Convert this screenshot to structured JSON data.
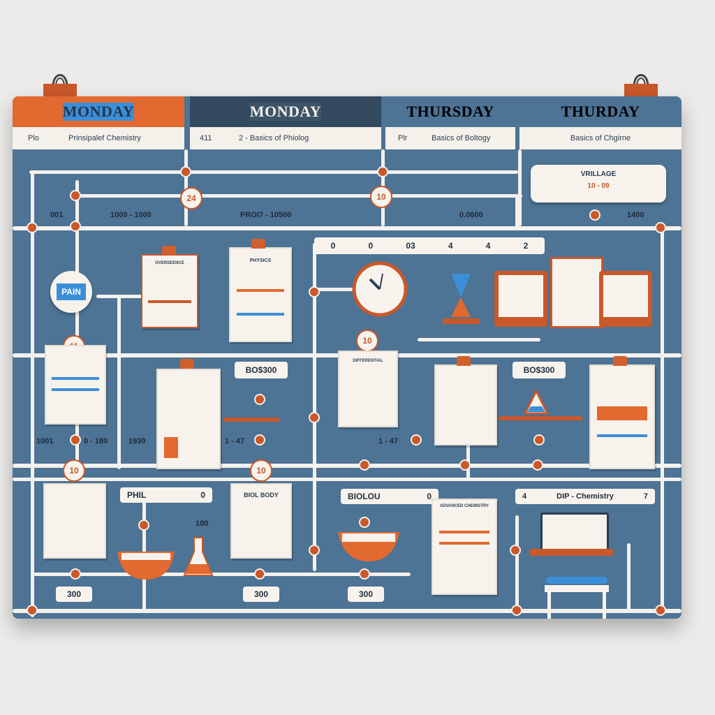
{
  "header": {
    "days": [
      {
        "label": "MONDAY",
        "bg": "#e2692f",
        "fg": "#25364a"
      },
      {
        "label": "MONDAY",
        "bg": "#3b8fd8",
        "fg": "#25364a"
      },
      {
        "label": "THURSDAY",
        "bg": "#32495f",
        "fg": "#f2ede6"
      },
      {
        "label": "THURDAY",
        "bg": "#3c5368",
        "fg": "#f2ede6"
      }
    ],
    "subtitles": [
      {
        "code": "Plo",
        "text": "Prinsipalef Chemistry"
      },
      {
        "code": "411",
        "text": "2 - Basics of Phiolog"
      },
      {
        "code": "Plr",
        "text": "Basics of Boltogy"
      },
      {
        "code": "",
        "text": "Basics of Chgirne"
      }
    ]
  },
  "notice": {
    "title": "VRILLAGE",
    "text": "10 - 09"
  },
  "times_row1": [
    "001",
    "1000 - 1000",
    "PROI7 - 10500",
    "0.0600",
    "1400"
  ],
  "timeline": [
    "0",
    "0",
    "03",
    "4",
    "4",
    "2"
  ],
  "badges": {
    "b1": "24",
    "b2": "10",
    "b3": "11",
    "b4": "10",
    "b5": "10",
    "b6": "10"
  },
  "pain_card": "PAIN",
  "pills_mid": [
    "BO$300",
    "BO$300"
  ],
  "times_row2": [
    "1001",
    "0 - 180",
    "1930",
    "1 - 47",
    "1 - 47"
  ],
  "row3_labels": [
    "PHIL",
    "BIOLOU",
    "DIP - Chemistry"
  ],
  "row3_nums": [
    "0",
    "0",
    "4",
    "7"
  ],
  "card_titles": {
    "bio": "BIOL BODY",
    "cards": [
      "OVERSEENCE",
      "PHYSICS",
      "DIFFERENTIAL",
      "ADVANCED CHEMISTRY"
    ]
  },
  "bottom_pills": [
    "300",
    "300",
    "300"
  ],
  "small_num": "180",
  "colors": {
    "accent": "#c9582a",
    "board": "#4d7395",
    "blue": "#3b8fd8"
  }
}
